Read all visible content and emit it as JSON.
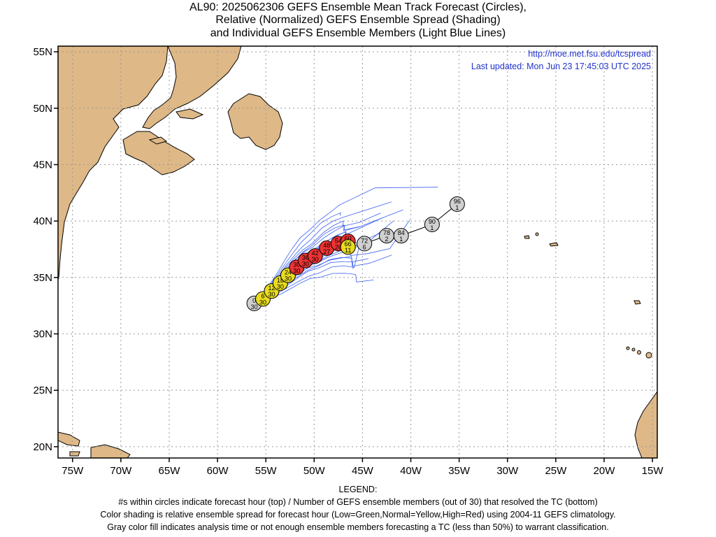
{
  "title": {
    "line1": "AL90: 2025062306 GEFS Ensemble Mean Track Forecast (Circles),",
    "line2": "Relative (Normalized) GEFS Ensemble Spread (Shading)",
    "line3": "and Individual GEFS Ensemble Members (Light Blue Lines)"
  },
  "info": {
    "url": "http://moe.met.fsu.edu/tcspread",
    "updated": "Last updated: Mon Jun 23 17:45:03 UTC 2025"
  },
  "map": {
    "lon_range": [
      -76.5,
      -14.5
    ],
    "lat_range": [
      19,
      55.5
    ],
    "lat_ticks": [
      {
        "value": 20,
        "label": "20N"
      },
      {
        "value": 25,
        "label": "25N"
      },
      {
        "value": 30,
        "label": "30N"
      },
      {
        "value": 35,
        "label": "35N"
      },
      {
        "value": 40,
        "label": "40N"
      },
      {
        "value": 45,
        "label": "45N"
      },
      {
        "value": 50,
        "label": "50N"
      },
      {
        "value": 55,
        "label": "55N"
      }
    ],
    "lon_ticks": [
      {
        "value": -75,
        "label": "75W"
      },
      {
        "value": -70,
        "label": "70W"
      },
      {
        "value": -65,
        "label": "65W"
      },
      {
        "value": -60,
        "label": "60W"
      },
      {
        "value": -55,
        "label": "55W"
      },
      {
        "value": -50,
        "label": "50W"
      },
      {
        "value": -45,
        "label": "45W"
      },
      {
        "value": -40,
        "label": "40W"
      },
      {
        "value": -35,
        "label": "35W"
      },
      {
        "value": -30,
        "label": "30W"
      },
      {
        "value": -25,
        "label": "25W"
      },
      {
        "value": -20,
        "label": "20W"
      },
      {
        "value": -15,
        "label": "15W"
      }
    ],
    "land_color": "#deb887",
    "member_line_color": "#3a5ff0"
  },
  "track": {
    "colors": {
      "green": "#33cc33",
      "yellow": "#e8dc20",
      "red": "#ee3333",
      "gray": "#d0d0d0"
    },
    "points": [
      {
        "hour": "0",
        "members": "30",
        "lon": -56.2,
        "lat": 32.7,
        "color": "gray"
      },
      {
        "hour": "6",
        "members": "30",
        "lon": -55.3,
        "lat": 33.1,
        "color": "yellow"
      },
      {
        "hour": "12",
        "members": "30",
        "lon": -54.4,
        "lat": 33.8,
        "color": "yellow"
      },
      {
        "hour": "18",
        "members": "30",
        "lon": -53.5,
        "lat": 34.5,
        "color": "yellow"
      },
      {
        "hour": "24",
        "members": "30",
        "lon": -52.7,
        "lat": 35.2,
        "color": "yellow"
      },
      {
        "hour": "30",
        "members": "30",
        "lon": -51.8,
        "lat": 35.9,
        "color": "red"
      },
      {
        "hour": "36",
        "members": "30",
        "lon": -50.9,
        "lat": 36.5,
        "color": "red"
      },
      {
        "hour": "42",
        "members": "30",
        "lon": -49.9,
        "lat": 36.9,
        "color": "red"
      },
      {
        "hour": "48",
        "members": "27",
        "lon": -48.7,
        "lat": 37.6,
        "color": "red"
      },
      {
        "hour": "54",
        "members": "26",
        "lon": -47.5,
        "lat": 38.0,
        "color": "red"
      },
      {
        "hour": "60",
        "members": "20",
        "lon": -46.5,
        "lat": 38.2,
        "color": "red"
      },
      {
        "hour": "66",
        "members": "11",
        "lon": -46.5,
        "lat": 37.7,
        "color": "yellow"
      },
      {
        "hour": "72",
        "members": "6",
        "lon": -44.8,
        "lat": 38.0,
        "color": "gray"
      },
      {
        "hour": "78",
        "members": "2",
        "lon": -42.5,
        "lat": 38.7,
        "color": "gray"
      },
      {
        "hour": "84",
        "members": "1",
        "lon": -41.0,
        "lat": 38.7,
        "color": "gray"
      },
      {
        "hour": "90",
        "members": "1",
        "lon": -37.8,
        "lat": 39.7,
        "color": "gray"
      },
      {
        "hour": "96",
        "members": "1",
        "lon": -35.2,
        "lat": 41.5,
        "color": "gray"
      }
    ]
  },
  "legend": {
    "heading": "LEGEND:",
    "line1": "#s within circles indicate forecast hour (top) / Number of GEFS ensemble members (out of 30) that resolved the TC (bottom)",
    "line2": "Color shading is relative ensemble spread for forecast hour (Low=Green,Normal=Yellow,High=Red) using 2004-11 GEFS climatology.",
    "line3": "Gray color fill indicates analysis time or not enough ensemble members forecasting a TC (less than 50%) to warrant classification."
  }
}
